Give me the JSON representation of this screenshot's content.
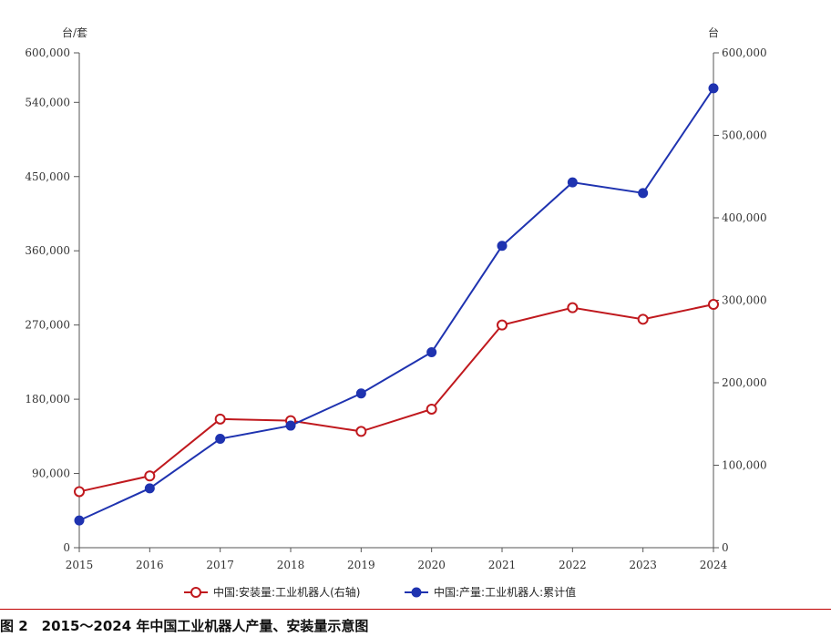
{
  "caption": "图 2　2015～2024 年中国工业机器人产量、安装量示意图",
  "chart_data": {
    "type": "line",
    "categories": [
      "2015",
      "2016",
      "2017",
      "2018",
      "2019",
      "2020",
      "2021",
      "2022",
      "2023",
      "2024"
    ],
    "left_axis": {
      "unit": "台/套",
      "ticks": [
        "0",
        "90,000",
        "180,000",
        "270,000",
        "360,000",
        "450,000",
        "540,000",
        "600,000"
      ],
      "tick_values": [
        0,
        90000,
        180000,
        270000,
        360000,
        450000,
        540000,
        600000
      ],
      "ylim": [
        0,
        600000
      ]
    },
    "right_axis": {
      "unit": "台",
      "ticks": [
        "0",
        "100,000",
        "200,000",
        "300,000",
        "400,000",
        "500,000",
        "600,000"
      ],
      "tick_values": [
        0,
        100000,
        200000,
        300000,
        400000,
        500000,
        600000
      ],
      "ylim": [
        0,
        600000
      ]
    },
    "grid": false,
    "legend_position": "bottom-center",
    "series": [
      {
        "name": "中国:安装量:工业机器人(右轴)",
        "axis": "right",
        "color": "#c0191e",
        "marker": "hollow-circle",
        "values": [
          68000,
          87000,
          156000,
          154000,
          141000,
          168000,
          270000,
          291000,
          277000,
          295000
        ]
      },
      {
        "name": "中国:产量:工业机器人:累计值",
        "axis": "left",
        "color": "#1f33b0",
        "marker": "filled-circle",
        "values": [
          33000,
          72000,
          132000,
          148000,
          187000,
          237000,
          366000,
          443000,
          430000,
          557000
        ]
      }
    ]
  }
}
